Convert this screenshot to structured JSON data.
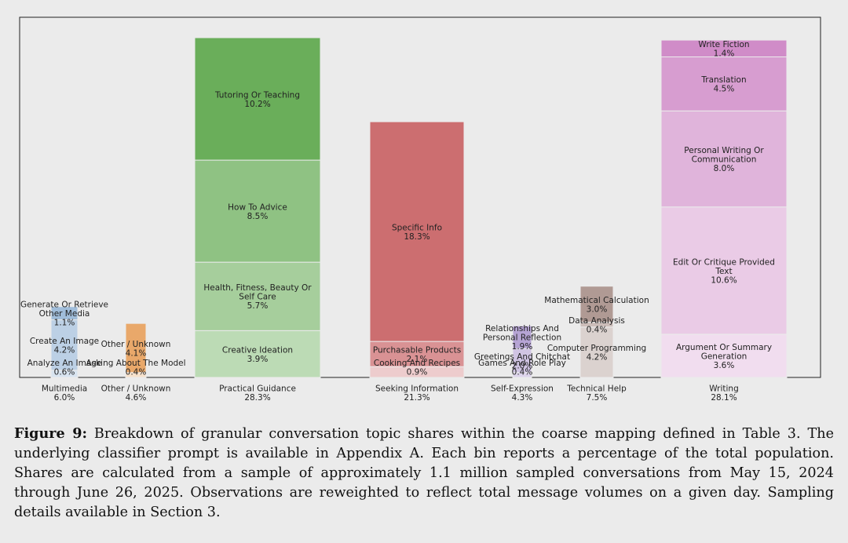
{
  "chart_data": {
    "type": "bar",
    "stacked": true,
    "ylim": [
      0,
      30
    ],
    "grid": false,
    "categories": [
      {
        "name": "Multimedia",
        "total": "6.0%",
        "color": "#8fb1d3",
        "segments": [
          {
            "label": "Analyze An Image",
            "value": 0.6,
            "shade": 0.35
          },
          {
            "label": "Create An Image",
            "value": 4.2,
            "shade": 0.6
          },
          {
            "label": "Generate Or Retrieve Other Media",
            "value": 1.1,
            "shade": 0.85
          }
        ]
      },
      {
        "name": "Other / Unknown",
        "total": "4.6%",
        "color": "#e9a86a",
        "segments": [
          {
            "label": "Asking About The Model",
            "value": 0.4,
            "shade": 0.35
          },
          {
            "label": "Other / Unknown",
            "value": 4.1,
            "shade": 1.0
          }
        ]
      },
      {
        "name": "Practical Guidance",
        "total": "28.3%",
        "color": "#6aae5a",
        "segments": [
          {
            "label": "Creative Ideation",
            "value": 3.9,
            "shade": 0.45
          },
          {
            "label": "Health, Fitness, Beauty Or Self Care",
            "value": 5.7,
            "shade": 0.6
          },
          {
            "label": "How To Advice",
            "value": 8.5,
            "shade": 0.75
          },
          {
            "label": "Tutoring Or Teaching",
            "value": 10.2,
            "shade": 1.0
          }
        ]
      },
      {
        "name": "Seeking Information",
        "total": "21.3%",
        "color": "#cc6e70",
        "segments": [
          {
            "label": "Cooking And Recipes",
            "value": 0.9,
            "shade": 0.35
          },
          {
            "label": "Purchasable Products",
            "value": 2.1,
            "shade": 0.75
          },
          {
            "label": "Specific Info",
            "value": 18.3,
            "shade": 1.0
          }
        ]
      },
      {
        "name": "Self-Expression",
        "total": "4.3%",
        "color": "#a994cc",
        "segments": [
          {
            "label": "Games And Role Play",
            "value": 0.4,
            "shade": 0.4
          },
          {
            "label": "Greetings And Chitchat",
            "value": 2.0,
            "shade": 0.55
          },
          {
            "label": "Relationships And Personal Reflection",
            "value": 1.9,
            "shade": 0.85
          }
        ]
      },
      {
        "name": "Technical Help",
        "total": "7.5%",
        "color": "#b09a94",
        "segments": [
          {
            "label": "Computer Programming",
            "value": 4.2,
            "shade": 0.45
          },
          {
            "label": "Data Analysis",
            "value": 0.4,
            "shade": 0.65
          },
          {
            "label": "Mathematical Calculation",
            "value": 3.0,
            "shade": 1.0
          }
        ]
      },
      {
        "name": "Writing",
        "total": "28.1%",
        "color": "#d08cc8",
        "segments": [
          {
            "label": "Argument Or Summary Generation",
            "value": 3.6,
            "shade": 0.3
          },
          {
            "label": "Edit Or Critique Provided Text",
            "value": 10.6,
            "shade": 0.45
          },
          {
            "label": "Personal Writing Or Communication",
            "value": 8.0,
            "shade": 0.65
          },
          {
            "label": "Translation",
            "value": 4.5,
            "shade": 0.85
          },
          {
            "label": "Write Fiction",
            "value": 1.4,
            "shade": 1.0
          }
        ]
      }
    ]
  },
  "caption": {
    "figure_label": "Figure 9:",
    "text": "Breakdown of granular conversation topic shares within the coarse mapping defined in Table 3. The underlying classifier prompt is available in Appendix A. Each bin reports a percentage of the total population. Shares are calculated from a sample of approximately 1.1 million sampled conversations from May 15, 2024 through June 26, 2025. Observations are reweighted to reflect total message volumes on a given day. Sampling details available in Section 3."
  }
}
